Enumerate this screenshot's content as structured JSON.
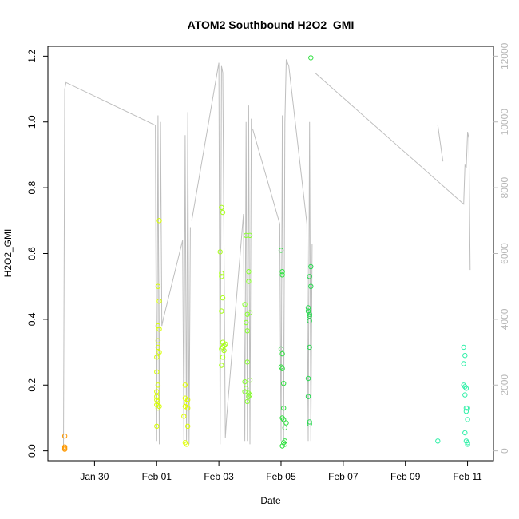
{
  "chart_data": {
    "type": "scatter",
    "title": "ATOM2 Southbound H2O2_GMI",
    "xlabel": "Date",
    "ylabel": "H2O2_GMI",
    "xlim": [
      "2017-01-28T12:00",
      "2017-02-11T20:00"
    ],
    "ylim": [
      -0.03,
      1.23
    ],
    "y2lim": [
      -300,
      12300
    ],
    "x_ticks": [
      {
        "date": "2017-01-30T00:00",
        "label": "Jan 30"
      },
      {
        "date": "2017-02-01T00:00",
        "label": "Feb 01"
      },
      {
        "date": "2017-02-03T00:00",
        "label": "Feb 03"
      },
      {
        "date": "2017-02-05T00:00",
        "label": "Feb 05"
      },
      {
        "date": "2017-02-07T00:00",
        "label": "Feb 07"
      },
      {
        "date": "2017-02-09T00:00",
        "label": "Feb 09"
      },
      {
        "date": "2017-02-11T00:00",
        "label": "Feb 11"
      }
    ],
    "y_ticks": [
      "0.0",
      "0.2",
      "0.4",
      "0.6",
      "0.8",
      "1.0",
      "1.2"
    ],
    "y2_ticks": [
      "0",
      "2000",
      "4000",
      "6000",
      "8000",
      "10000",
      "12000"
    ],
    "grid": false,
    "legend": "none",
    "colors": {
      "altitude_line": "#bebebe",
      "right_axis": "#b8b8b8"
    },
    "series": [
      {
        "name": "",
        "axis": "left",
        "kind": "points",
        "points": [
          {
            "x": "2017-01-29T01:00",
            "y": 0.045,
            "color": "#ff9900"
          },
          {
            "x": "2017-01-29T01:00",
            "y": 0.012,
            "color": "#ff9900"
          },
          {
            "x": "2017-01-29T01:00",
            "y": 0.008,
            "color": "#ff9900"
          },
          {
            "x": "2017-01-29T01:00",
            "y": 0.005,
            "color": "#ff9900"
          },
          {
            "x": "2017-02-01T02:00",
            "y": 0.7,
            "color": "#d8ff00"
          },
          {
            "x": "2017-02-01T01:00",
            "y": 0.5,
            "color": "#d8ff00"
          },
          {
            "x": "2017-02-01T02:00",
            "y": 0.455,
            "color": "#d8ff00"
          },
          {
            "x": "2017-02-01T01:00",
            "y": 0.38,
            "color": "#d8ff00"
          },
          {
            "x": "2017-02-01T02:00",
            "y": 0.37,
            "color": "#d8ff00"
          },
          {
            "x": "2017-02-01T01:00",
            "y": 0.335,
            "color": "#d8ff00"
          },
          {
            "x": "2017-02-01T01:00",
            "y": 0.315,
            "color": "#d8ff00"
          },
          {
            "x": "2017-02-01T02:00",
            "y": 0.3,
            "color": "#d8ff00"
          },
          {
            "x": "2017-02-01T00:00",
            "y": 0.285,
            "color": "#d8ff00"
          },
          {
            "x": "2017-02-01T00:00",
            "y": 0.24,
            "color": "#d8ff00"
          },
          {
            "x": "2017-02-01T01:00",
            "y": 0.2,
            "color": "#d8ff00"
          },
          {
            "x": "2017-02-01T00:00",
            "y": 0.18,
            "color": "#d8ff00"
          },
          {
            "x": "2017-02-01T00:00",
            "y": 0.165,
            "color": "#d8ff00"
          },
          {
            "x": "2017-02-01T00:00",
            "y": 0.155,
            "color": "#d8ff00"
          },
          {
            "x": "2017-02-01T01:00",
            "y": 0.15,
            "color": "#d8ff00"
          },
          {
            "x": "2017-02-01T00:00",
            "y": 0.14,
            "color": "#d8ff00"
          },
          {
            "x": "2017-02-01T02:00",
            "y": 0.135,
            "color": "#d8ff00"
          },
          {
            "x": "2017-02-01T01:00",
            "y": 0.13,
            "color": "#d8ff00"
          },
          {
            "x": "2017-02-01T00:00",
            "y": 0.075,
            "color": "#d8ff00"
          },
          {
            "x": "2017-02-01T22:00",
            "y": 0.2,
            "color": "#e0ff00"
          },
          {
            "x": "2017-02-01T22:00",
            "y": 0.16,
            "color": "#e0ff00"
          },
          {
            "x": "2017-02-02T00:00",
            "y": 0.155,
            "color": "#e0ff00"
          },
          {
            "x": "2017-02-01T23:00",
            "y": 0.145,
            "color": "#e0ff00"
          },
          {
            "x": "2017-02-01T22:00",
            "y": 0.135,
            "color": "#e0ff00"
          },
          {
            "x": "2017-02-02T00:00",
            "y": 0.13,
            "color": "#e0ff00"
          },
          {
            "x": "2017-02-01T21:00",
            "y": 0.105,
            "color": "#e0ff00"
          },
          {
            "x": "2017-02-02T00:00",
            "y": 0.075,
            "color": "#e0ff00"
          },
          {
            "x": "2017-02-01T22:00",
            "y": 0.025,
            "color": "#e0ff00"
          },
          {
            "x": "2017-02-01T23:00",
            "y": 0.02,
            "color": "#e0ff00"
          },
          {
            "x": "2017-02-03T02:00",
            "y": 0.74,
            "color": "#a8ff18"
          },
          {
            "x": "2017-02-03T03:00",
            "y": 0.725,
            "color": "#a8ff18"
          },
          {
            "x": "2017-02-03T01:00",
            "y": 0.605,
            "color": "#a8ff18"
          },
          {
            "x": "2017-02-03T02:00",
            "y": 0.54,
            "color": "#a8ff18"
          },
          {
            "x": "2017-02-03T02:00",
            "y": 0.53,
            "color": "#a8ff18"
          },
          {
            "x": "2017-02-03T03:00",
            "y": 0.465,
            "color": "#a8ff18"
          },
          {
            "x": "2017-02-03T02:00",
            "y": 0.425,
            "color": "#a8ff18"
          },
          {
            "x": "2017-02-03T03:00",
            "y": 0.33,
            "color": "#a8ff18"
          },
          {
            "x": "2017-02-03T05:00",
            "y": 0.325,
            "color": "#a8ff18"
          },
          {
            "x": "2017-02-03T04:00",
            "y": 0.32,
            "color": "#a8ff18"
          },
          {
            "x": "2017-02-03T03:00",
            "y": 0.315,
            "color": "#a8ff18"
          },
          {
            "x": "2017-02-03T02:00",
            "y": 0.31,
            "color": "#a8ff18"
          },
          {
            "x": "2017-02-03T04:00",
            "y": 0.305,
            "color": "#a8ff18"
          },
          {
            "x": "2017-02-03T03:00",
            "y": 0.285,
            "color": "#a8ff18"
          },
          {
            "x": "2017-02-03T02:00",
            "y": 0.26,
            "color": "#a8ff18"
          },
          {
            "x": "2017-02-03T21:00",
            "y": 0.655,
            "color": "#88ff30"
          },
          {
            "x": "2017-02-04T00:00",
            "y": 0.655,
            "color": "#88ff30"
          },
          {
            "x": "2017-02-03T23:00",
            "y": 0.545,
            "color": "#88ff30"
          },
          {
            "x": "2017-02-03T23:00",
            "y": 0.515,
            "color": "#88ff30"
          },
          {
            "x": "2017-02-03T20:00",
            "y": 0.445,
            "color": "#88ff30"
          },
          {
            "x": "2017-02-03T22:00",
            "y": 0.415,
            "color": "#88ff30"
          },
          {
            "x": "2017-02-04T00:00",
            "y": 0.42,
            "color": "#88ff30"
          },
          {
            "x": "2017-02-03T21:00",
            "y": 0.39,
            "color": "#88ff30"
          },
          {
            "x": "2017-02-03T22:00",
            "y": 0.365,
            "color": "#88ff30"
          },
          {
            "x": "2017-02-03T22:00",
            "y": 0.27,
            "color": "#88ff30"
          },
          {
            "x": "2017-02-03T20:00",
            "y": 0.21,
            "color": "#88ff30"
          },
          {
            "x": "2017-02-04T00:00",
            "y": 0.215,
            "color": "#88ff30"
          },
          {
            "x": "2017-02-03T21:00",
            "y": 0.19,
            "color": "#88ff30"
          },
          {
            "x": "2017-02-03T20:00",
            "y": 0.18,
            "color": "#88ff30"
          },
          {
            "x": "2017-02-03T23:00",
            "y": 0.175,
            "color": "#88ff30"
          },
          {
            "x": "2017-02-04T00:00",
            "y": 0.17,
            "color": "#88ff30"
          },
          {
            "x": "2017-02-03T23:00",
            "y": 0.165,
            "color": "#88ff30"
          },
          {
            "x": "2017-02-03T22:00",
            "y": 0.15,
            "color": "#88ff30"
          },
          {
            "x": "2017-02-05T00:00",
            "y": 0.61,
            "color": "#30e040"
          },
          {
            "x": "2017-02-05T01:00",
            "y": 0.545,
            "color": "#30e040"
          },
          {
            "x": "2017-02-05T01:00",
            "y": 0.535,
            "color": "#30e040"
          },
          {
            "x": "2017-02-05T00:00",
            "y": 0.31,
            "color": "#30e040"
          },
          {
            "x": "2017-02-05T01:00",
            "y": 0.295,
            "color": "#30e040"
          },
          {
            "x": "2017-02-05T00:00",
            "y": 0.255,
            "color": "#30e040"
          },
          {
            "x": "2017-02-05T01:00",
            "y": 0.25,
            "color": "#30e040"
          },
          {
            "x": "2017-02-05T02:00",
            "y": 0.205,
            "color": "#30e040"
          },
          {
            "x": "2017-02-05T02:00",
            "y": 0.13,
            "color": "#30e040"
          },
          {
            "x": "2017-02-05T01:00",
            "y": 0.1,
            "color": "#30e040"
          },
          {
            "x": "2017-02-05T02:00",
            "y": 0.095,
            "color": "#30e040"
          },
          {
            "x": "2017-02-05T04:00",
            "y": 0.085,
            "color": "#30e040"
          },
          {
            "x": "2017-02-05T03:00",
            "y": 0.07,
            "color": "#30e040"
          },
          {
            "x": "2017-02-05T03:00",
            "y": 0.03,
            "color": "#30e040"
          },
          {
            "x": "2017-02-05T02:00",
            "y": 0.025,
            "color": "#30e040"
          },
          {
            "x": "2017-02-05T03:00",
            "y": 0.02,
            "color": "#30e040"
          },
          {
            "x": "2017-02-05T01:00",
            "y": 0.015,
            "color": "#30e040"
          },
          {
            "x": "2017-02-05T23:00",
            "y": 1.195,
            "color": "#30e040"
          },
          {
            "x": "2017-02-05T23:00",
            "y": 0.56,
            "color": "#28d850"
          },
          {
            "x": "2017-02-05T22:00",
            "y": 0.53,
            "color": "#28d850"
          },
          {
            "x": "2017-02-05T23:00",
            "y": 0.5,
            "color": "#28d850"
          },
          {
            "x": "2017-02-05T21:00",
            "y": 0.435,
            "color": "#28d850"
          },
          {
            "x": "2017-02-05T21:00",
            "y": 0.425,
            "color": "#28d850"
          },
          {
            "x": "2017-02-05T22:00",
            "y": 0.415,
            "color": "#28d850"
          },
          {
            "x": "2017-02-05T22:00",
            "y": 0.41,
            "color": "#28d850"
          },
          {
            "x": "2017-02-05T22:00",
            "y": 0.395,
            "color": "#28d850"
          },
          {
            "x": "2017-02-05T22:00",
            "y": 0.315,
            "color": "#28d850"
          },
          {
            "x": "2017-02-05T21:00",
            "y": 0.22,
            "color": "#28d850"
          },
          {
            "x": "2017-02-05T21:00",
            "y": 0.165,
            "color": "#28d850"
          },
          {
            "x": "2017-02-05T22:00",
            "y": 0.088,
            "color": "#28d850"
          },
          {
            "x": "2017-02-05T22:00",
            "y": 0.082,
            "color": "#28d850"
          },
          {
            "x": "2017-02-10T01:00",
            "y": 0.03,
            "color": "#30f0a8"
          },
          {
            "x": "2017-02-10T21:00",
            "y": 0.315,
            "color": "#30f0a8"
          },
          {
            "x": "2017-02-10T22:00",
            "y": 0.29,
            "color": "#30f0a8"
          },
          {
            "x": "2017-02-10T21:00",
            "y": 0.265,
            "color": "#30f0a8"
          },
          {
            "x": "2017-02-10T21:00",
            "y": 0.2,
            "color": "#30f0a8"
          },
          {
            "x": "2017-02-10T22:00",
            "y": 0.195,
            "color": "#30f0a8"
          },
          {
            "x": "2017-02-10T23:00",
            "y": 0.19,
            "color": "#30f0a8"
          },
          {
            "x": "2017-02-10T22:00",
            "y": 0.17,
            "color": "#30f0a8"
          },
          {
            "x": "2017-02-10T23:00",
            "y": 0.13,
            "color": "#30f0a8"
          },
          {
            "x": "2017-02-11T00:00",
            "y": 0.13,
            "color": "#30f0a8"
          },
          {
            "x": "2017-02-10T23:00",
            "y": 0.12,
            "color": "#30f0a8"
          },
          {
            "x": "2017-02-11T00:00",
            "y": 0.095,
            "color": "#30f0a8"
          },
          {
            "x": "2017-02-10T22:00",
            "y": 0.055,
            "color": "#30f0a8"
          },
          {
            "x": "2017-02-10T23:00",
            "y": 0.03,
            "color": "#30f0a8"
          },
          {
            "x": "2017-02-11T00:00",
            "y": 0.025,
            "color": "#30f0a8"
          },
          {
            "x": "2017-02-11T00:00",
            "y": 0.02,
            "color": "#30f0a8"
          }
        ]
      },
      {
        "name": "",
        "axis": "right",
        "kind": "line",
        "color": "#bebebe",
        "segments": [
          [
            [
              "2017-01-29T00:00",
              0
            ],
            [
              "2017-01-29T01:00",
              11000
            ],
            [
              "2017-01-29T02:00",
              11200
            ],
            [
              "2017-01-31T23:00",
              9900
            ],
            [
              "2017-02-01T00:00",
              300
            ],
            [
              "2017-02-01T01:00",
              10200
            ],
            [
              "2017-02-01T02:00",
              200
            ],
            [
              "2017-02-01T03:00",
              10000
            ],
            [
              "2017-02-01T04:00",
              3800
            ],
            [
              "2017-02-01T05:00",
              4000
            ],
            [
              "2017-02-01T20:00",
              6400
            ],
            [
              "2017-02-01T21:00",
              300
            ],
            [
              "2017-02-01T22:00",
              9600
            ],
            [
              "2017-02-01T23:00",
              300
            ],
            [
              "2017-02-02T00:00",
              10300
            ],
            [
              "2017-02-02T01:00",
              200
            ],
            [
              "2017-02-02T02:00",
              6800
            ]
          ],
          [
            [
              "2017-02-02T03:00",
              7000
            ],
            [
              "2017-02-03T00:00",
              11800
            ],
            [
              "2017-02-03T01:00",
              200
            ],
            [
              "2017-02-03T02:00",
              11700
            ],
            [
              "2017-02-03T03:00",
              11500
            ],
            [
              "2017-02-03T05:00",
              400
            ],
            [
              "2017-02-03T06:00",
              1000
            ],
            [
              "2017-02-03T19:00",
              7200
            ],
            [
              "2017-02-03T20:00",
              300
            ],
            [
              "2017-02-03T21:00",
              10000
            ],
            [
              "2017-02-03T22:00",
              300
            ],
            [
              "2017-02-03T23:00",
              10500
            ],
            [
              "2017-02-04T00:00",
              200
            ],
            [
              "2017-02-04T01:00",
              10100
            ]
          ],
          [
            [
              "2017-02-04T02:00",
              9800
            ],
            [
              "2017-02-04T23:00",
              6900
            ],
            [
              "2017-02-05T00:00",
              300
            ],
            [
              "2017-02-05T01:00",
              10200
            ],
            [
              "2017-02-05T02:00",
              300
            ],
            [
              "2017-02-05T03:00",
              10000
            ],
            [
              "2017-02-05T04:00",
              11900
            ],
            [
              "2017-02-05T06:00",
              11700
            ],
            [
              "2017-02-05T20:00",
              6900
            ],
            [
              "2017-02-05T21:00",
              300
            ],
            [
              "2017-02-05T22:00",
              10000
            ],
            [
              "2017-02-05T23:00",
              300
            ],
            [
              "2017-02-06T00:00",
              6300
            ]
          ],
          [
            [
              "2017-02-06T02:00",
              11500
            ],
            [
              "2017-02-10T21:00",
              7500
            ],
            [
              "2017-02-10T22:00",
              8700
            ],
            [
              "2017-02-10T23:00",
              8600
            ],
            [
              "2017-02-11T00:00",
              9700
            ],
            [
              "2017-02-11T01:00",
              9500
            ],
            [
              "2017-02-11T02:00",
              5500
            ]
          ],
          [
            [
              "2017-02-10T01:00",
              9900
            ],
            [
              "2017-02-10T05:00",
              8800
            ]
          ]
        ]
      }
    ]
  }
}
